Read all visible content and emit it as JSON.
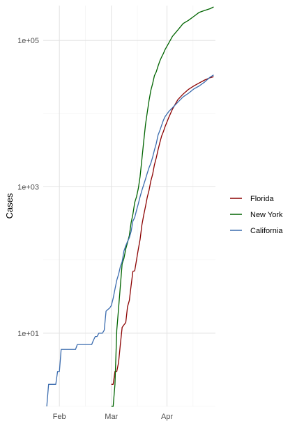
{
  "chart_data": {
    "type": "line",
    "title": "",
    "xlabel": "",
    "ylabel": "Cases",
    "y_scale": "log10",
    "ylim": [
      1,
      300000
    ],
    "xlim": [
      "2020-01-23",
      "2020-04-28"
    ],
    "x_ticks": [
      {
        "date": "2020-02-01",
        "label": "Feb"
      },
      {
        "date": "2020-03-01",
        "label": "Mar"
      },
      {
        "date": "2020-04-01",
        "label": "Apr"
      }
    ],
    "y_ticks": [
      {
        "value": 10,
        "label": "1e+01"
      },
      {
        "value": 1000,
        "label": "1e+03"
      },
      {
        "value": 100000,
        "label": "1e+05"
      }
    ],
    "grid": true,
    "legend_position": "right",
    "series": [
      {
        "name": "Florida",
        "color": "#8B0000",
        "x": [
          "2020-03-01",
          "2020-03-02",
          "2020-03-03",
          "2020-03-04",
          "2020-03-05",
          "2020-03-06",
          "2020-03-07",
          "2020-03-08",
          "2020-03-09",
          "2020-03-10",
          "2020-03-11",
          "2020-03-12",
          "2020-03-13",
          "2020-03-14",
          "2020-03-15",
          "2020-03-16",
          "2020-03-17",
          "2020-03-18",
          "2020-03-19",
          "2020-03-20",
          "2020-03-21",
          "2020-03-22",
          "2020-03-23",
          "2020-03-24",
          "2020-03-25",
          "2020-03-26",
          "2020-03-27",
          "2020-03-28",
          "2020-03-29",
          "2020-03-30",
          "2020-03-31",
          "2020-04-02",
          "2020-04-04",
          "2020-04-07",
          "2020-04-10",
          "2020-04-13",
          "2020-04-16",
          "2020-04-19",
          "2020-04-22",
          "2020-04-25",
          "2020-04-27"
        ],
        "y": [
          2,
          2,
          3,
          3,
          4,
          7,
          12,
          13,
          14,
          23,
          28,
          45,
          70,
          71,
          100,
          141,
          190,
          300,
          410,
          540,
          720,
          900,
          1210,
          1480,
          2000,
          2480,
          3200,
          4000,
          4950,
          5700,
          6740,
          8900,
          11500,
          15500,
          18500,
          21500,
          24000,
          26300,
          28800,
          31000,
          32000
        ]
      },
      {
        "name": "New York",
        "color": "#006400",
        "x": [
          "2020-03-01",
          "2020-03-02",
          "2020-03-03",
          "2020-03-04",
          "2020-03-05",
          "2020-03-06",
          "2020-03-07",
          "2020-03-08",
          "2020-03-09",
          "2020-03-10",
          "2020-03-11",
          "2020-03-12",
          "2020-03-13",
          "2020-03-14",
          "2020-03-15",
          "2020-03-16",
          "2020-03-17",
          "2020-03-18",
          "2020-03-19",
          "2020-03-20",
          "2020-03-21",
          "2020-03-22",
          "2020-03-23",
          "2020-03-24",
          "2020-03-25",
          "2020-03-26",
          "2020-03-27",
          "2020-03-28",
          "2020-03-29",
          "2020-03-30",
          "2020-03-31",
          "2020-04-02",
          "2020-04-04",
          "2020-04-07",
          "2020-04-10",
          "2020-04-13",
          "2020-04-16",
          "2020-04-19",
          "2020-04-22",
          "2020-04-25",
          "2020-04-27"
        ],
        "y": [
          1,
          1,
          2,
          11,
          22,
          44,
          89,
          106,
          142,
          173,
          216,
          325,
          421,
          610,
          732,
          950,
          1374,
          2382,
          4152,
          7102,
          10356,
          15168,
          20875,
          25665,
          33066,
          37258,
          44635,
          52318,
          59513,
          66497,
          75795,
          92381,
          113704,
          138863,
          170512,
          188694,
          213779,
          242786,
          257216,
          271590,
          287000
        ]
      },
      {
        "name": "California",
        "color": "#3A6BAE",
        "x": [
          "2020-01-25",
          "2020-01-26",
          "2020-01-27",
          "2020-01-28",
          "2020-01-29",
          "2020-01-30",
          "2020-01-31",
          "2020-02-01",
          "2020-02-02",
          "2020-02-03",
          "2020-02-04",
          "2020-02-05",
          "2020-02-06",
          "2020-02-07",
          "2020-02-08",
          "2020-02-09",
          "2020-02-10",
          "2020-02-11",
          "2020-02-12",
          "2020-02-13",
          "2020-02-14",
          "2020-02-15",
          "2020-02-16",
          "2020-02-17",
          "2020-02-18",
          "2020-02-19",
          "2020-02-20",
          "2020-02-21",
          "2020-02-22",
          "2020-02-23",
          "2020-02-24",
          "2020-02-25",
          "2020-02-26",
          "2020-02-27",
          "2020-02-28",
          "2020-02-29",
          "2020-03-01",
          "2020-03-02",
          "2020-03-03",
          "2020-03-04",
          "2020-03-05",
          "2020-03-06",
          "2020-03-07",
          "2020-03-08",
          "2020-03-09",
          "2020-03-10",
          "2020-03-11",
          "2020-03-12",
          "2020-03-13",
          "2020-03-14",
          "2020-03-15",
          "2020-03-16",
          "2020-03-17",
          "2020-03-18",
          "2020-03-19",
          "2020-03-20",
          "2020-03-21",
          "2020-03-22",
          "2020-03-23",
          "2020-03-24",
          "2020-03-25",
          "2020-03-26",
          "2020-03-27",
          "2020-03-28",
          "2020-03-29",
          "2020-03-30",
          "2020-03-31",
          "2020-04-02",
          "2020-04-04",
          "2020-04-07",
          "2020-04-10",
          "2020-04-13",
          "2020-04-16",
          "2020-04-19",
          "2020-04-22",
          "2020-04-25",
          "2020-04-27"
        ],
        "y": [
          1,
          2,
          2,
          2,
          2,
          2,
          3,
          3,
          6,
          6,
          6,
          6,
          6,
          6,
          6,
          6,
          6,
          7,
          7,
          7,
          7,
          7,
          7,
          7,
          7,
          7,
          8,
          9,
          9,
          10,
          10,
          10,
          11,
          20,
          21,
          22,
          24,
          30,
          40,
          53,
          64,
          81,
          95,
          133,
          157,
          179,
          202,
          247,
          340,
          381,
          478,
          588,
          732,
          893,
          1067,
          1279,
          1536,
          1829,
          2108,
          2538,
          3183,
          3899,
          5095,
          5852,
          6932,
          8155,
          9191,
          10701,
          12026,
          14336,
          16957,
          19018,
          21794,
          23939,
          27107,
          31544,
          33800
        ]
      }
    ]
  }
}
